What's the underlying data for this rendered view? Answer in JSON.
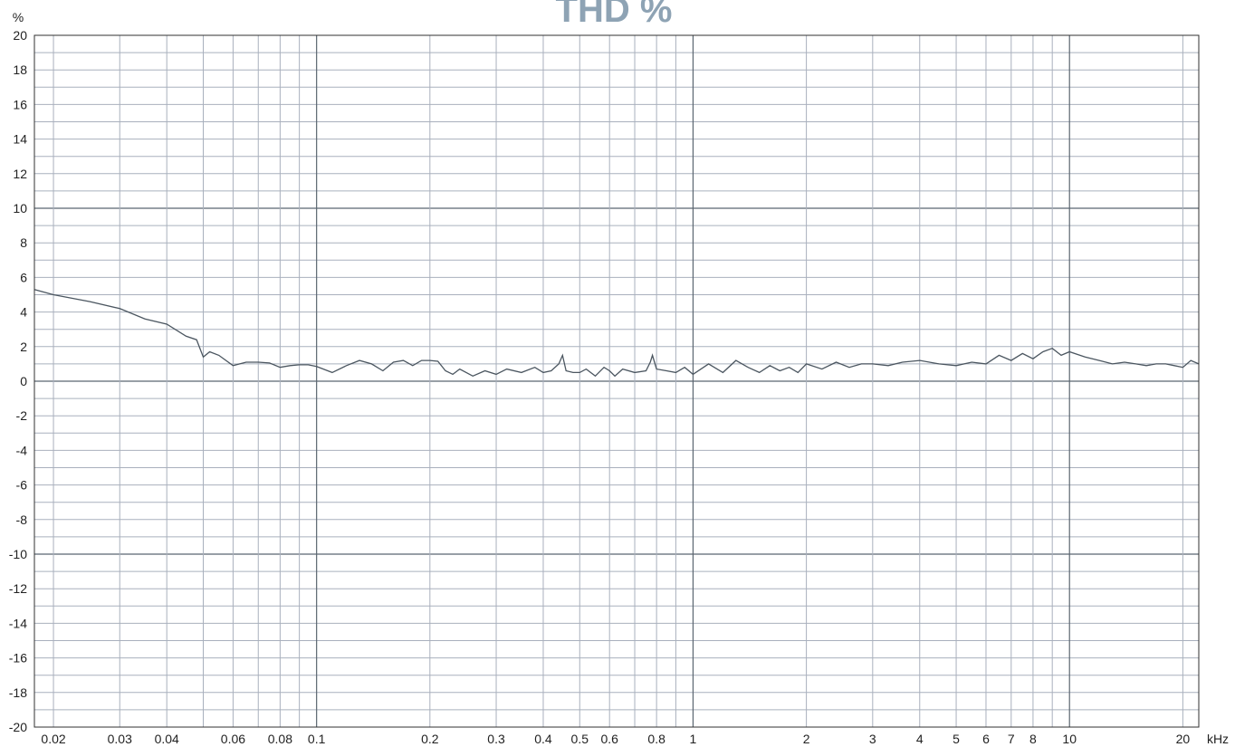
{
  "chart_data": {
    "type": "line",
    "title": "THD %",
    "ylabel": "%",
    "xunit": "kHz",
    "xscale": "log",
    "xlim": [
      0.0178,
      22.05
    ],
    "ylim": [
      -20,
      20
    ],
    "grid": true,
    "legend": "none",
    "y_ticks": [
      "20",
      "18",
      "16",
      "14",
      "12",
      "10",
      "8",
      "6",
      "4",
      "2",
      "0",
      "-2",
      "-4",
      "-6",
      "-8",
      "-10",
      "-12",
      "-14",
      "-16",
      "-18",
      "-20"
    ],
    "y_tick_values": [
      20,
      18,
      16,
      14,
      12,
      10,
      8,
      6,
      4,
      2,
      0,
      -2,
      -4,
      -6,
      -8,
      -10,
      -12,
      -14,
      -16,
      -18,
      -20
    ],
    "x_ticks": [
      "0.02",
      "0.03",
      "0.04",
      "0.06",
      "0.08",
      "0.1",
      "0.2",
      "0.3",
      "0.4",
      "0.5",
      "0.6",
      "0.8",
      "1",
      "2",
      "3",
      "4",
      "5",
      "6",
      "7",
      "8",
      "10",
      "20"
    ],
    "x_tick_values": [
      0.02,
      0.03,
      0.04,
      0.06,
      0.08,
      0.1,
      0.2,
      0.3,
      0.4,
      0.5,
      0.6,
      0.8,
      1,
      2,
      3,
      4,
      5,
      6,
      7,
      8,
      10,
      20
    ],
    "colors": {
      "title": "#8ea3b4",
      "line": "#4b5660",
      "major_grid": "#5b6670",
      "minor_grid": "#a9b0bd",
      "frame": "#303030"
    },
    "series": [
      {
        "x": [
          0.0178,
          0.02,
          0.025,
          0.03,
          0.035,
          0.04,
          0.045,
          0.048,
          0.05,
          0.052,
          0.055,
          0.06,
          0.065,
          0.07,
          0.075,
          0.08,
          0.085,
          0.09,
          0.095,
          0.1,
          0.11,
          0.12,
          0.13,
          0.14,
          0.15,
          0.16,
          0.17,
          0.18,
          0.19,
          0.2,
          0.21,
          0.22,
          0.23,
          0.24,
          0.26,
          0.28,
          0.3,
          0.32,
          0.35,
          0.38,
          0.4,
          0.42,
          0.44,
          0.45,
          0.46,
          0.48,
          0.5,
          0.52,
          0.55,
          0.58,
          0.6,
          0.62,
          0.65,
          0.7,
          0.75,
          0.77,
          0.78,
          0.8,
          0.85,
          0.9,
          0.95,
          1.0,
          1.1,
          1.2,
          1.3,
          1.4,
          1.5,
          1.6,
          1.7,
          1.8,
          1.9,
          2.0,
          2.2,
          2.4,
          2.6,
          2.8,
          3.0,
          3.3,
          3.6,
          4.0,
          4.5,
          5.0,
          5.5,
          6.0,
          6.5,
          7.0,
          7.5,
          8.0,
          8.5,
          9.0,
          9.5,
          10.0,
          11,
          12,
          13,
          14,
          15,
          16,
          17,
          18,
          19,
          20,
          21,
          22.05
        ],
        "y": [
          5.3,
          5.0,
          4.6,
          4.2,
          3.6,
          3.3,
          2.6,
          2.4,
          1.4,
          1.7,
          1.5,
          0.9,
          1.1,
          1.1,
          1.05,
          0.8,
          0.9,
          0.95,
          0.95,
          0.85,
          0.5,
          0.9,
          1.2,
          1.0,
          0.6,
          1.1,
          1.2,
          0.9,
          1.2,
          1.2,
          1.15,
          0.6,
          0.4,
          0.7,
          0.3,
          0.6,
          0.4,
          0.7,
          0.5,
          0.8,
          0.5,
          0.6,
          1.0,
          1.5,
          0.6,
          0.5,
          0.5,
          0.7,
          0.3,
          0.8,
          0.6,
          0.3,
          0.7,
          0.5,
          0.6,
          1.1,
          1.5,
          0.7,
          0.6,
          0.5,
          0.8,
          0.4,
          1.0,
          0.5,
          1.2,
          0.8,
          0.5,
          0.9,
          0.6,
          0.8,
          0.5,
          1.0,
          0.7,
          1.1,
          0.8,
          1.0,
          1.0,
          0.9,
          1.1,
          1.2,
          1.0,
          0.9,
          1.1,
          1.0,
          1.5,
          1.2,
          1.6,
          1.3,
          1.7,
          1.9,
          1.5,
          1.7,
          1.4,
          1.2,
          1.0,
          1.1,
          1.0,
          0.9,
          1.0,
          1.0,
          0.9,
          0.8,
          1.2,
          1.0
        ]
      }
    ]
  }
}
